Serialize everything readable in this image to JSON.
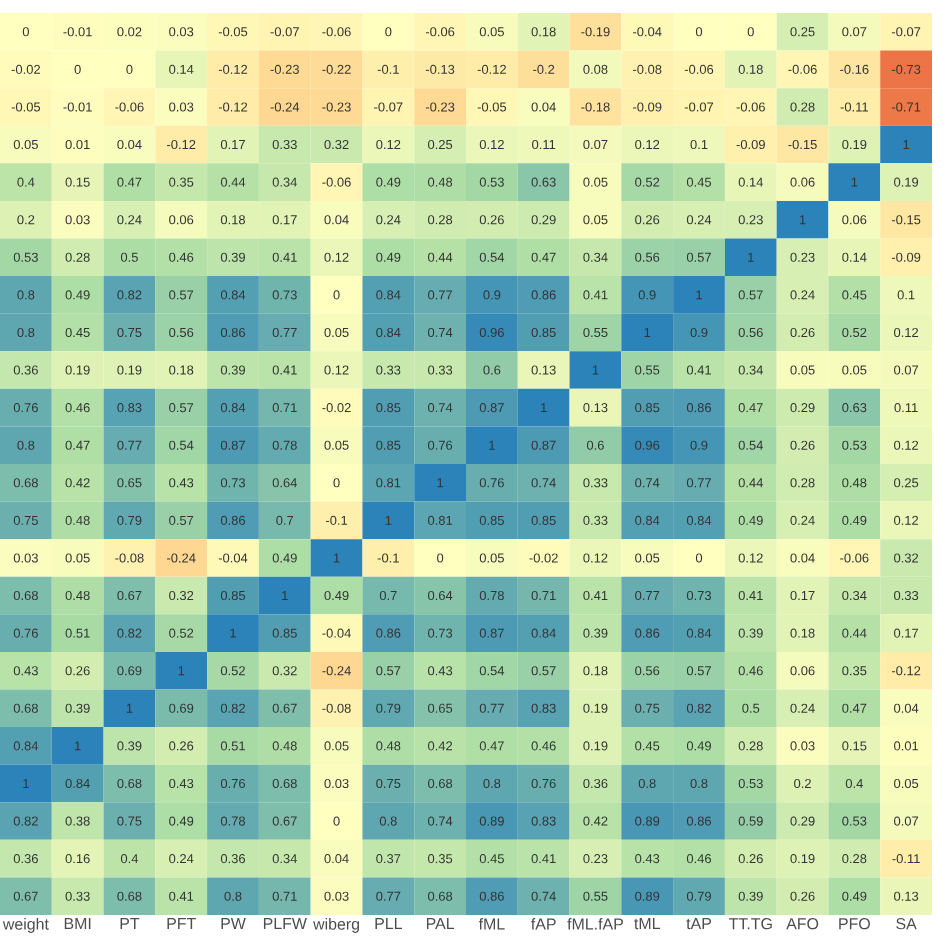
{
  "chart_data": {
    "type": "heatmap",
    "categories": [
      "weight",
      "BMI",
      "PT",
      "PFT",
      "PW",
      "PLFW",
      "wiberg",
      "PLL",
      "PAL",
      "fML",
      "fAP",
      "fML.fAP",
      "tML",
      "tAP",
      "TT.TG",
      "AFO",
      "PFO",
      "SA"
    ],
    "y_categories": [
      null,
      null,
      null,
      null,
      null,
      null,
      null,
      null,
      null,
      null,
      null,
      null,
      null,
      null,
      null,
      null,
      null,
      null,
      null,
      null,
      null,
      null,
      null,
      null
    ],
    "tick_labels": "x",
    "data_labels": true,
    "cells": [
      [
        0,
        -0.01,
        0.02,
        0.03,
        -0.05,
        -0.07,
        -0.06,
        0,
        -0.06,
        0.05,
        0.18,
        -0.19,
        -0.04,
        0,
        0,
        0.25,
        0.07,
        -0.07
      ],
      [
        -0.02,
        0,
        0,
        0.14,
        -0.12,
        -0.23,
        -0.22,
        -0.1,
        -0.13,
        -0.12,
        -0.2,
        0.08,
        -0.08,
        -0.06,
        0.18,
        -0.06,
        -0.16,
        -0.73
      ],
      [
        -0.05,
        -0.01,
        -0.06,
        0.03,
        -0.12,
        -0.24,
        -0.23,
        -0.07,
        -0.23,
        -0.05,
        0.04,
        -0.18,
        -0.09,
        -0.07,
        -0.06,
        0.28,
        -0.11,
        -0.71
      ],
      [
        0.05,
        0.01,
        0.04,
        -0.12,
        0.17,
        0.33,
        0.32,
        0.12,
        0.25,
        0.12,
        0.11,
        0.07,
        0.12,
        0.1,
        -0.09,
        -0.15,
        0.19,
        1
      ],
      [
        0.4,
        0.15,
        0.47,
        0.35,
        0.44,
        0.34,
        -0.06,
        0.49,
        0.48,
        0.53,
        0.63,
        0.05,
        0.52,
        0.45,
        0.14,
        0.06,
        1,
        0.19
      ],
      [
        0.2,
        0.03,
        0.24,
        0.06,
        0.18,
        0.17,
        0.04,
        0.24,
        0.28,
        0.26,
        0.29,
        0.05,
        0.26,
        0.24,
        0.23,
        1,
        0.06,
        -0.15
      ],
      [
        0.53,
        0.28,
        0.5,
        0.46,
        0.39,
        0.41,
        0.12,
        0.49,
        0.44,
        0.54,
        0.47,
        0.34,
        0.56,
        0.57,
        1,
        0.23,
        0.14,
        -0.09
      ],
      [
        0.8,
        0.49,
        0.82,
        0.57,
        0.84,
        0.73,
        0,
        0.84,
        0.77,
        0.9,
        0.86,
        0.41,
        0.9,
        1,
        0.57,
        0.24,
        0.45,
        0.1
      ],
      [
        0.8,
        0.45,
        0.75,
        0.56,
        0.86,
        0.77,
        0.05,
        0.84,
        0.74,
        0.96,
        0.85,
        0.55,
        1,
        0.9,
        0.56,
        0.26,
        0.52,
        0.12
      ],
      [
        0.36,
        0.19,
        0.19,
        0.18,
        0.39,
        0.41,
        0.12,
        0.33,
        0.33,
        0.6,
        0.13,
        1,
        0.55,
        0.41,
        0.34,
        0.05,
        0.05,
        0.07
      ],
      [
        0.76,
        0.46,
        0.83,
        0.57,
        0.84,
        0.71,
        -0.02,
        0.85,
        0.74,
        0.87,
        1,
        0.13,
        0.85,
        0.86,
        0.47,
        0.29,
        0.63,
        0.11
      ],
      [
        0.8,
        0.47,
        0.77,
        0.54,
        0.87,
        0.78,
        0.05,
        0.85,
        0.76,
        1,
        0.87,
        0.6,
        0.96,
        0.9,
        0.54,
        0.26,
        0.53,
        0.12
      ],
      [
        0.68,
        0.42,
        0.65,
        0.43,
        0.73,
        0.64,
        0,
        0.81,
        1,
        0.76,
        0.74,
        0.33,
        0.74,
        0.77,
        0.44,
        0.28,
        0.48,
        0.25
      ],
      [
        0.75,
        0.48,
        0.79,
        0.57,
        0.86,
        0.7,
        -0.1,
        1,
        0.81,
        0.85,
        0.85,
        0.33,
        0.84,
        0.84,
        0.49,
        0.24,
        0.49,
        0.12
      ],
      [
        0.03,
        0.05,
        -0.08,
        -0.24,
        -0.04,
        0.49,
        1,
        -0.1,
        0,
        0.05,
        -0.02,
        0.12,
        0.05,
        0,
        0.12,
        0.04,
        -0.06,
        0.32
      ],
      [
        0.68,
        0.48,
        0.67,
        0.32,
        0.85,
        1,
        0.49,
        0.7,
        0.64,
        0.78,
        0.71,
        0.41,
        0.77,
        0.73,
        0.41,
        0.17,
        0.34,
        0.33
      ],
      [
        0.76,
        0.51,
        0.82,
        0.52,
        1,
        0.85,
        -0.04,
        0.86,
        0.73,
        0.87,
        0.84,
        0.39,
        0.86,
        0.84,
        0.39,
        0.18,
        0.44,
        0.17
      ],
      [
        0.43,
        0.26,
        0.69,
        1,
        0.52,
        0.32,
        -0.24,
        0.57,
        0.43,
        0.54,
        0.57,
        0.18,
        0.56,
        0.57,
        0.46,
        0.06,
        0.35,
        -0.12
      ],
      [
        0.68,
        0.39,
        1,
        0.69,
        0.82,
        0.67,
        -0.08,
        0.79,
        0.65,
        0.77,
        0.83,
        0.19,
        0.75,
        0.82,
        0.5,
        0.24,
        0.47,
        0.04
      ],
      [
        0.84,
        1,
        0.39,
        0.26,
        0.51,
        0.48,
        0.05,
        0.48,
        0.42,
        0.47,
        0.46,
        0.19,
        0.45,
        0.49,
        0.28,
        0.03,
        0.15,
        0.01
      ],
      [
        1,
        0.84,
        0.68,
        0.43,
        0.76,
        0.68,
        0.03,
        0.75,
        0.68,
        0.8,
        0.76,
        0.36,
        0.8,
        0.8,
        0.53,
        0.2,
        0.4,
        0.05
      ],
      [
        0.82,
        0.38,
        0.75,
        0.49,
        0.78,
        0.67,
        0,
        0.8,
        0.74,
        0.89,
        0.83,
        0.42,
        0.89,
        0.86,
        0.59,
        0.29,
        0.53,
        0.07
      ],
      [
        0.36,
        0.16,
        0.4,
        0.24,
        0.36,
        0.34,
        0.04,
        0.37,
        0.35,
        0.45,
        0.41,
        0.23,
        0.43,
        0.46,
        0.26,
        0.19,
        0.28,
        -0.11
      ],
      [
        0.67,
        0.33,
        0.68,
        0.41,
        0.8,
        0.71,
        0.03,
        0.77,
        0.68,
        0.86,
        0.74,
        0.55,
        0.89,
        0.79,
        0.39,
        0.26,
        0.49,
        0.13
      ]
    ]
  }
}
